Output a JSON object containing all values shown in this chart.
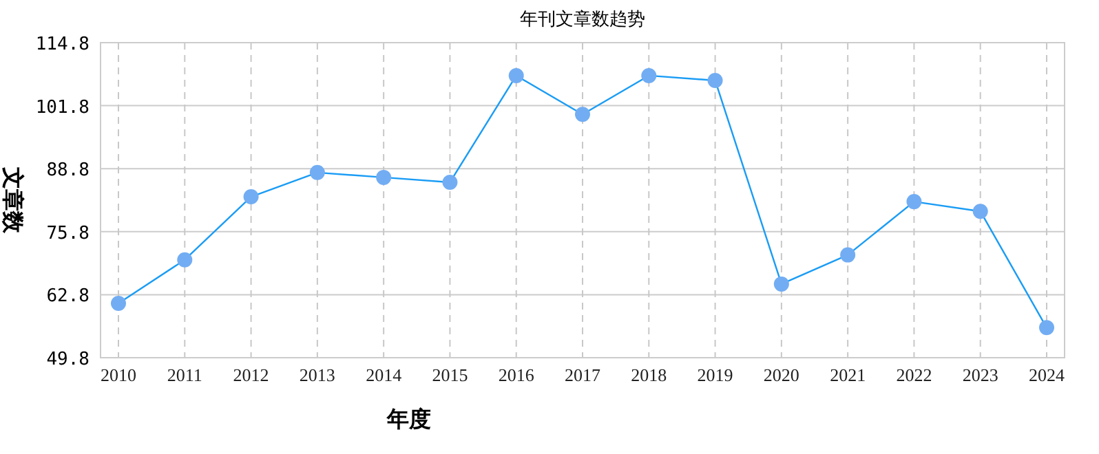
{
  "chart_data": {
    "type": "line",
    "title": "年刊文章数趋势",
    "xlabel": "年度",
    "ylabel": "文章数",
    "categories": [
      "2010",
      "2011",
      "2012",
      "2013",
      "2014",
      "2015",
      "2016",
      "2017",
      "2018",
      "2019",
      "2020",
      "2021",
      "2022",
      "2023",
      "2024"
    ],
    "series": [
      {
        "color": "#1a9cf5",
        "values": [
          61,
          70,
          83,
          88,
          87,
          86,
          108,
          100,
          108,
          107,
          65,
          71,
          82,
          80,
          56
        ]
      }
    ],
    "ylim": [
      49.8,
      114.8
    ],
    "yticks": [
      49.8,
      62.8,
      75.8,
      88.8,
      101.8,
      114.8
    ],
    "grid": true,
    "marker": "circle",
    "line_style": "solid"
  }
}
